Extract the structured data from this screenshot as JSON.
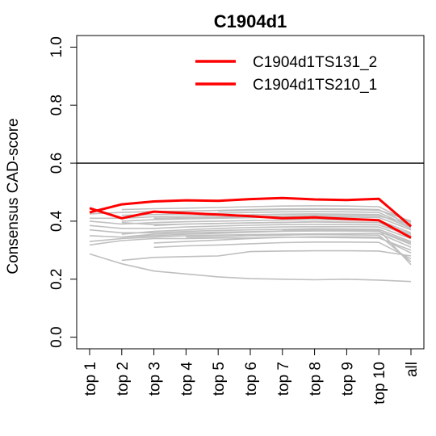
{
  "chart_data": {
    "type": "line",
    "title": "C1904d1",
    "xlabel": "",
    "ylabel": "Consensus CAD-score",
    "categories": [
      "top 1",
      "top 2",
      "top 3",
      "top 4",
      "top 5",
      "top 6",
      "top 7",
      "top 8",
      "top 9",
      "top 10",
      "all"
    ],
    "ylim": [
      -0.04,
      1.04
    ],
    "yticks": [
      "0.0",
      "0.2",
      "0.4",
      "0.6",
      "0.8",
      "1.0"
    ],
    "reference_line": 0.6,
    "legend_position": "top-right",
    "colors": {
      "highlight": "#ff0000",
      "background": "#bfbfbf",
      "axis": "#000000"
    },
    "series": [
      {
        "name": "C1904d1TS131_2",
        "highlight": true,
        "values": [
          0.43,
          0.458,
          0.468,
          0.472,
          0.47,
          0.476,
          0.48,
          0.475,
          0.473,
          0.477,
          0.382
        ]
      },
      {
        "name": "C1904d1TS210_1",
        "highlight": true,
        "values": [
          0.445,
          0.41,
          0.433,
          0.428,
          0.423,
          0.417,
          0.41,
          0.413,
          0.408,
          0.403,
          0.343
        ]
      },
      {
        "highlight": false,
        "values": [
          0.287,
          0.253,
          0.228,
          0.218,
          0.208,
          0.202,
          0.2,
          0.198,
          0.2,
          0.197,
          0.192
        ]
      },
      {
        "highlight": false,
        "values": [
          null,
          0.265,
          0.275,
          0.278,
          0.28,
          0.295,
          0.297,
          0.298,
          0.298,
          0.297,
          0.28
        ]
      },
      {
        "highlight": false,
        "values": [
          0.318,
          0.333,
          0.34,
          0.34,
          0.342,
          0.342,
          0.345,
          0.344,
          0.343,
          0.342,
          0.3
        ]
      },
      {
        "highlight": false,
        "values": [
          0.33,
          0.34,
          0.345,
          0.35,
          0.352,
          0.354,
          0.355,
          0.356,
          0.357,
          0.358,
          0.31
        ]
      },
      {
        "highlight": false,
        "values": [
          null,
          0.345,
          0.35,
          0.355,
          0.358,
          0.362,
          0.365,
          0.366,
          0.366,
          0.365,
          0.32
        ]
      },
      {
        "highlight": false,
        "values": [
          null,
          null,
          0.325,
          0.33,
          0.335,
          0.34,
          0.344,
          0.346,
          0.346,
          0.345,
          0.29
        ]
      },
      {
        "highlight": false,
        "values": [
          0.37,
          0.36,
          0.36,
          0.365,
          0.368,
          0.37,
          0.372,
          0.374,
          0.373,
          0.372,
          0.33
        ]
      },
      {
        "highlight": false,
        "values": [
          null,
          0.355,
          0.365,
          0.37,
          0.375,
          0.378,
          0.38,
          0.381,
          0.381,
          0.38,
          0.34
        ]
      },
      {
        "highlight": false,
        "values": [
          0.385,
          0.375,
          0.375,
          0.38,
          0.383,
          0.386,
          0.388,
          0.389,
          0.388,
          0.387,
          0.35
        ]
      },
      {
        "highlight": false,
        "values": [
          null,
          null,
          0.385,
          0.39,
          0.392,
          0.394,
          0.396,
          0.397,
          0.396,
          0.395,
          0.355
        ]
      },
      {
        "highlight": false,
        "values": [
          0.4,
          0.39,
          0.395,
          0.398,
          0.4,
          0.402,
          0.404,
          0.405,
          0.404,
          0.403,
          0.36
        ]
      },
      {
        "highlight": false,
        "values": [
          null,
          0.4,
          0.405,
          0.408,
          0.41,
          0.412,
          0.414,
          0.415,
          0.414,
          0.413,
          0.37
        ]
      },
      {
        "highlight": false,
        "values": [
          0.41,
          0.41,
          0.415,
          0.418,
          0.42,
          0.422,
          0.424,
          0.425,
          0.424,
          0.423,
          0.375
        ]
      },
      {
        "highlight": false,
        "values": [
          null,
          0.42,
          0.423,
          0.425,
          0.427,
          0.43,
          0.432,
          0.433,
          0.432,
          0.43,
          0.38
        ]
      },
      {
        "highlight": false,
        "values": [
          0.425,
          0.43,
          0.433,
          0.435,
          0.437,
          0.44,
          0.442,
          0.443,
          0.442,
          0.44,
          0.385
        ]
      },
      {
        "highlight": false,
        "values": [
          null,
          0.44,
          0.443,
          0.445,
          0.447,
          0.45,
          0.452,
          0.453,
          0.452,
          0.45,
          0.395
        ]
      },
      {
        "highlight": false,
        "values": [
          null,
          0.395,
          0.388,
          0.39,
          0.392,
          0.394,
          0.396,
          0.398,
          0.397,
          0.396,
          0.345
        ]
      },
      {
        "highlight": false,
        "values": [
          0.35,
          0.345,
          0.355,
          0.36,
          0.362,
          0.364,
          0.366,
          0.368,
          0.367,
          0.366,
          0.325
        ]
      },
      {
        "highlight": false,
        "values": [
          null,
          null,
          0.31,
          0.315,
          0.318,
          0.322,
          0.326,
          0.328,
          0.328,
          0.327,
          0.27
        ]
      },
      {
        "highlight": false,
        "values": [
          null,
          null,
          null,
          0.345,
          0.347,
          0.35,
          0.352,
          0.354,
          0.353,
          0.352,
          0.26
        ]
      },
      {
        "highlight": false,
        "values": [
          null,
          null,
          null,
          null,
          null,
          null,
          0.37,
          0.372,
          0.371,
          0.37,
          0.25
        ]
      },
      {
        "highlight": false,
        "values": [
          null,
          null,
          0.41,
          0.412,
          0.414,
          0.416,
          0.418,
          0.42,
          0.419,
          0.418,
          0.39
        ]
      },
      {
        "highlight": false,
        "values": [
          null,
          null,
          null,
          null,
          0.435,
          0.438,
          0.44,
          0.441,
          0.44,
          0.438,
          0.4
        ]
      }
    ]
  }
}
